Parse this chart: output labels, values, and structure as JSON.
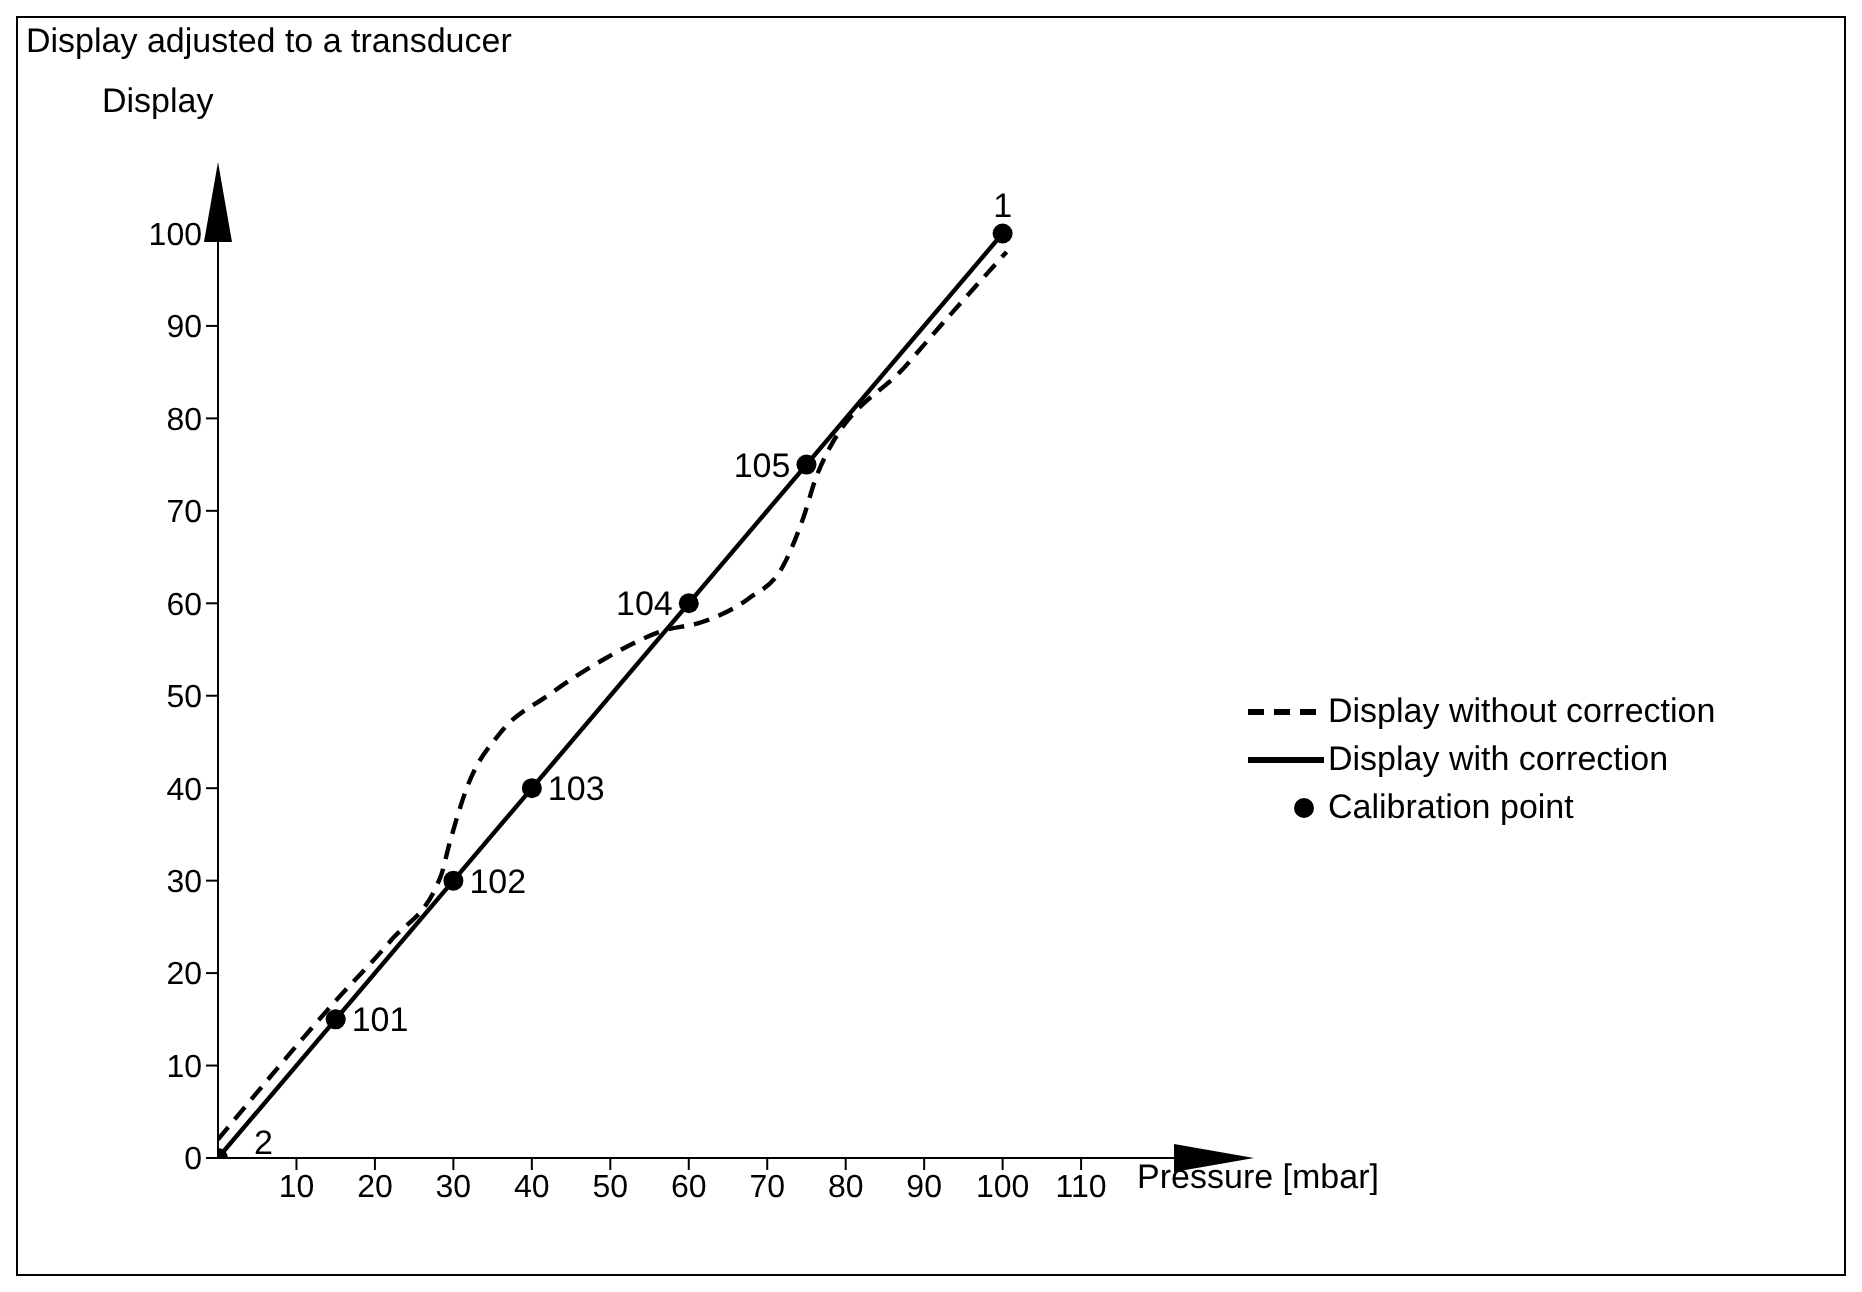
{
  "chart_data": {
    "type": "line",
    "title": "Display adjusted to a transducer",
    "xlabel": "Pressure [mbar]",
    "ylabel": "Display",
    "xlim": [
      0,
      130
    ],
    "ylim": [
      0,
      106
    ],
    "xticks": [
      10,
      20,
      30,
      40,
      50,
      60,
      70,
      80,
      90,
      100,
      110
    ],
    "yticks": [
      0,
      10,
      20,
      30,
      40,
      50,
      60,
      70,
      80,
      90,
      100
    ],
    "grid": false,
    "legend": "right",
    "marker": "none",
    "series": [
      {
        "name": "Display without correction",
        "color": "#000000",
        "line_style": "dashed",
        "x": [
          0,
          15,
          22,
          28.4,
          29.5,
          31.7,
          36,
          42,
          49.3,
          56.6,
          61.8,
          67.6,
          72,
          74.5,
          76.4,
          88,
          100.5
        ],
        "values": [
          2,
          17,
          23.5,
          30.5,
          34,
          40,
          46,
          50,
          54,
          57,
          58,
          60.5,
          64,
          69,
          74,
          86,
          98
        ]
      },
      {
        "name": "Display with correction",
        "color": "#000000",
        "line_style": "solid",
        "x": [
          0,
          100
        ],
        "values": [
          0,
          100
        ]
      },
      {
        "name": "Calibration point",
        "type": "scatter",
        "marker": "circle",
        "color": "#000000",
        "x": [
          0,
          15,
          30,
          40,
          60,
          75,
          100
        ],
        "values": [
          0,
          15,
          30,
          40,
          60,
          75,
          100
        ]
      }
    ],
    "annotations": [
      {
        "text": "1",
        "x": 100,
        "y": 100
      },
      {
        "text": "2",
        "x": 0,
        "y": 0
      },
      {
        "text": "101",
        "x": 15,
        "y": 15
      },
      {
        "text": "102",
        "x": 30,
        "y": 30
      },
      {
        "text": "103",
        "x": 40,
        "y": 40
      },
      {
        "text": "104",
        "x": 60,
        "y": 60
      },
      {
        "text": "105",
        "x": 75,
        "y": 75
      }
    ]
  }
}
